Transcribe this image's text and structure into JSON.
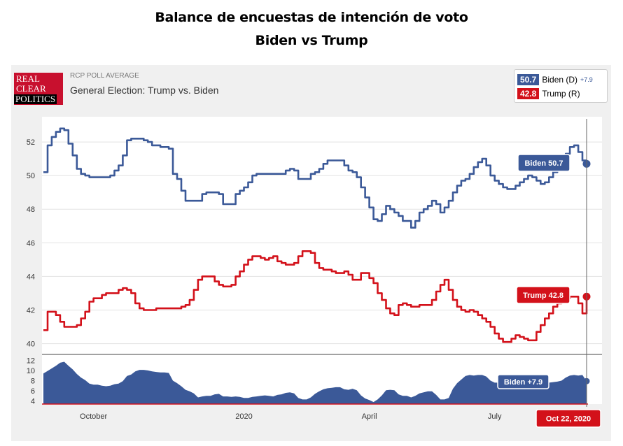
{
  "page": {
    "title_line1": "Balance de encuestas de intención de voto",
    "title_line2": "Biden vs Trump",
    "logo_line1": "REAL",
    "logo_line2": "CLEAR",
    "logo_line3": "POLITICS",
    "header_small": "RCP POLL AVERAGE",
    "header_big": "General Election: Trump vs. Biden"
  },
  "legend": {
    "biden_value": "50.7",
    "biden_label": "Biden (D)",
    "biden_spread": "+7.9",
    "trump_value": "42.8",
    "trump_label": "Trump (R)"
  },
  "colors": {
    "biden": "#3b5998",
    "trump": "#d3111a",
    "grid": "#e2e2e2"
  },
  "chart_data": {
    "type": "line",
    "title": "General Election: Trump vs. Biden",
    "x_axis_labels": [
      "October",
      "2020",
      "April",
      "July"
    ],
    "x_axis_positions_index": [
      12,
      48,
      78,
      108
    ],
    "x_range_index": [
      0,
      130
    ],
    "ylim": [
      39.4,
      53.5
    ],
    "yticks": [
      40,
      42,
      44,
      46,
      48,
      50,
      52
    ],
    "series": [
      {
        "name": "Biden",
        "color": "#3b5998",
        "values": [
          50.2,
          51.8,
          52.3,
          52.6,
          52.8,
          52.7,
          51.9,
          51.2,
          50.4,
          50.1,
          50.0,
          49.9,
          49.9,
          49.9,
          49.9,
          49.9,
          50.0,
          50.3,
          50.6,
          51.2,
          52.1,
          52.2,
          52.2,
          52.2,
          52.1,
          52.0,
          51.8,
          51.8,
          51.7,
          51.7,
          51.6,
          50.1,
          49.8,
          49.1,
          48.5,
          48.5,
          48.5,
          48.5,
          48.9,
          49.0,
          49.0,
          49.0,
          48.9,
          48.3,
          48.3,
          48.3,
          48.9,
          49.1,
          49.3,
          49.6,
          50.0,
          50.1,
          50.1,
          50.1,
          50.1,
          50.1,
          50.1,
          50.1,
          50.3,
          50.4,
          50.3,
          49.8,
          49.8,
          49.8,
          50.1,
          50.2,
          50.4,
          50.7,
          50.9,
          50.9,
          50.9,
          50.9,
          50.6,
          50.3,
          50.2,
          49.9,
          49.3,
          48.7,
          48.1,
          47.4,
          47.3,
          47.7,
          48.2,
          48.0,
          47.8,
          47.6,
          47.3,
          47.3,
          46.9,
          47.3,
          47.8,
          48.0,
          48.2,
          48.5,
          48.3,
          47.8,
          48.1,
          48.5,
          49.0,
          49.4,
          49.7,
          49.8,
          50.1,
          50.5,
          50.8,
          51.0,
          50.6,
          50.0,
          49.7,
          49.5,
          49.3,
          49.2,
          49.2,
          49.4,
          49.6,
          49.8,
          50.0,
          49.9,
          49.7,
          49.5,
          49.6,
          49.9,
          50.2,
          50.5,
          50.8,
          51.3,
          51.7,
          51.8,
          51.4,
          50.9,
          50.7
        ],
        "end_value": 50.7
      },
      {
        "name": "Trump",
        "color": "#d3111a",
        "values": [
          40.8,
          41.9,
          41.9,
          41.7,
          41.3,
          41.0,
          41.0,
          41.0,
          41.1,
          41.5,
          41.9,
          42.5,
          42.7,
          42.7,
          42.9,
          43.0,
          43.0,
          43.0,
          43.2,
          43.3,
          43.2,
          43.0,
          42.4,
          42.1,
          42.0,
          42.0,
          42.0,
          42.1,
          42.1,
          42.1,
          42.1,
          42.1,
          42.1,
          42.2,
          42.3,
          42.6,
          43.2,
          43.8,
          44.0,
          44.0,
          44.0,
          43.7,
          43.5,
          43.4,
          43.4,
          43.5,
          44.0,
          44.3,
          44.7,
          45.0,
          45.2,
          45.2,
          45.1,
          45.0,
          45.1,
          45.2,
          44.9,
          44.8,
          44.7,
          44.7,
          44.8,
          45.2,
          45.5,
          45.5,
          45.4,
          44.8,
          44.5,
          44.4,
          44.4,
          44.3,
          44.2,
          44.2,
          44.3,
          44.1,
          43.8,
          43.8,
          44.2,
          44.2,
          43.9,
          43.6,
          43.0,
          42.6,
          42.1,
          41.8,
          41.7,
          42.3,
          42.4,
          42.3,
          42.2,
          42.2,
          42.3,
          42.3,
          42.3,
          42.6,
          43.1,
          43.5,
          43.8,
          43.2,
          42.6,
          42.2,
          42.0,
          41.9,
          42.0,
          41.9,
          41.7,
          41.5,
          41.3,
          41.0,
          40.6,
          40.3,
          40.1,
          40.1,
          40.3,
          40.5,
          40.4,
          40.3,
          40.2,
          40.2,
          40.7,
          41.1,
          41.5,
          41.8,
          42.2,
          42.4,
          42.5,
          42.7,
          42.8,
          42.8,
          42.4,
          41.8,
          42.8
        ],
        "end_value": 42.8
      }
    ],
    "spread": {
      "name": "Biden +7.9",
      "ylim": [
        3.4,
        13
      ],
      "yticks": [
        4,
        6,
        8,
        10,
        12
      ],
      "values": [
        9.4,
        9.9,
        10.4,
        10.9,
        11.5,
        11.7,
        10.9,
        10.2,
        9.3,
        8.6,
        8.1,
        7.4,
        7.2,
        7.2,
        7.0,
        6.9,
        7.0,
        7.3,
        7.4,
        7.9,
        8.9,
        9.2,
        9.8,
        10.1,
        10.1,
        10.0,
        9.8,
        9.7,
        9.6,
        9.6,
        9.5,
        8.0,
        7.5,
        6.9,
        6.2,
        5.9,
        5.5,
        4.7,
        4.9,
        5.0,
        5.0,
        5.3,
        5.4,
        4.9,
        4.9,
        4.8,
        4.9,
        4.8,
        4.6,
        4.6,
        4.8,
        4.9,
        5.0,
        5.1,
        5.0,
        4.9,
        5.2,
        5.3,
        5.6,
        5.7,
        5.5,
        4.6,
        4.3,
        4.3,
        4.7,
        5.4,
        5.9,
        6.3,
        6.5,
        6.6,
        6.7,
        6.7,
        6.3,
        6.2,
        6.4,
        6.1,
        5.1,
        4.5,
        4.2,
        3.8,
        4.3,
        5.1,
        6.1,
        6.2,
        6.1,
        5.3,
        5.0,
        5.0,
        4.7,
        5.0,
        5.5,
        5.7,
        5.9,
        5.9,
        5.2,
        4.3,
        4.3,
        4.6,
        6.4,
        7.5,
        8.2,
        8.9,
        9.1,
        9.0,
        9.1,
        9.1,
        8.8,
        8.0,
        7.6,
        7.6,
        7.6,
        7.9,
        8.2,
        8.3,
        8.4,
        8.2,
        7.9,
        7.7,
        7.9,
        8.0,
        7.9,
        7.6,
        7.7,
        7.8,
        8.0,
        8.6,
        9.0,
        9.1,
        9.0,
        9.1,
        7.9
      ],
      "end_value": 7.9
    },
    "callouts": {
      "biden": "Biden 50.7",
      "trump": "Trump 42.8",
      "spread": "Biden +7.9",
      "date": "Oct 22, 2020"
    }
  }
}
